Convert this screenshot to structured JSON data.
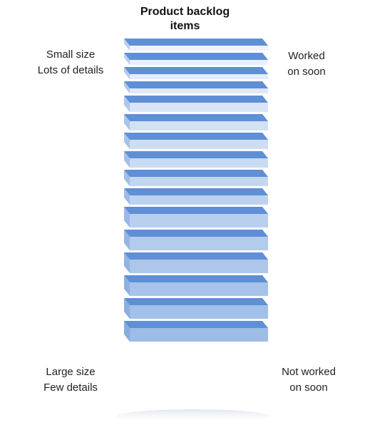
{
  "title": {
    "line1": "Product backlog",
    "line2": "items"
  },
  "top_left": {
    "line1": "Small size",
    "line2": "Lots of details"
  },
  "top_right": {
    "line1": "Worked",
    "line2": "on soon"
  },
  "bottom_left": {
    "line1": "Large size",
    "line2": "Few details"
  },
  "bottom_right": {
    "line1": "Not worked",
    "line2": "on soon"
  },
  "colors": {
    "slab_top": "#5f8fd6",
    "slab_front_light": "#eef3fc",
    "slab_front_mid": "#c6d8f2",
    "slab_front_dark": "#9dbce6"
  }
}
